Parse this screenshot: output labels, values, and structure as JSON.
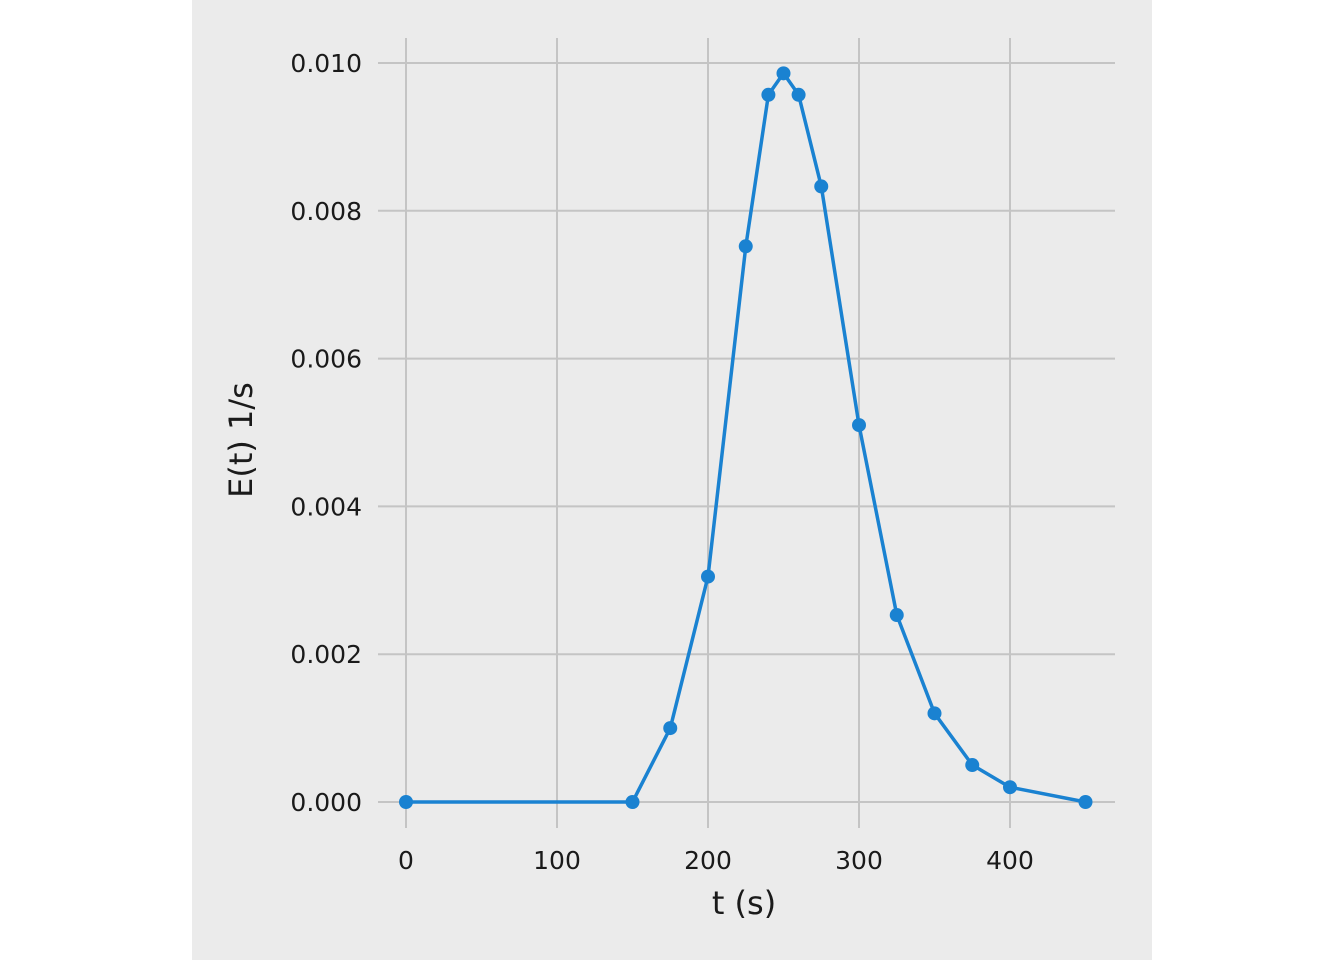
{
  "chart_data": {
    "type": "line",
    "title": "",
    "xlabel": "t (s)",
    "ylabel": "E(t) 1/s",
    "xlim": [
      -15,
      470
    ],
    "ylim": [
      -0.0004,
      0.0103
    ],
    "xticks": [
      0,
      100,
      200,
      300,
      400
    ],
    "xtick_labels": [
      "0",
      "100",
      "200",
      "300",
      "400"
    ],
    "yticks": [
      0.0,
      0.002,
      0.004,
      0.006,
      0.008,
      0.01
    ],
    "ytick_labels": [
      "0.000",
      "0.002",
      "0.004",
      "0.006",
      "0.008",
      "0.010"
    ],
    "grid": true,
    "background_color": "#ebebeb",
    "grid_color": "#c4c4c4",
    "series": [
      {
        "color": "#1a82d1",
        "marker": "circle",
        "x": [
          0,
          150,
          175,
          200,
          225,
          240,
          250,
          260,
          275,
          300,
          325,
          350,
          375,
          400,
          450
        ],
        "y": [
          0.0,
          0.0,
          0.001,
          0.00305,
          0.00752,
          0.00957,
          0.00986,
          0.00957,
          0.00833,
          0.0051,
          0.00253,
          0.0012,
          0.0005,
          0.0002,
          0.0
        ]
      }
    ]
  }
}
